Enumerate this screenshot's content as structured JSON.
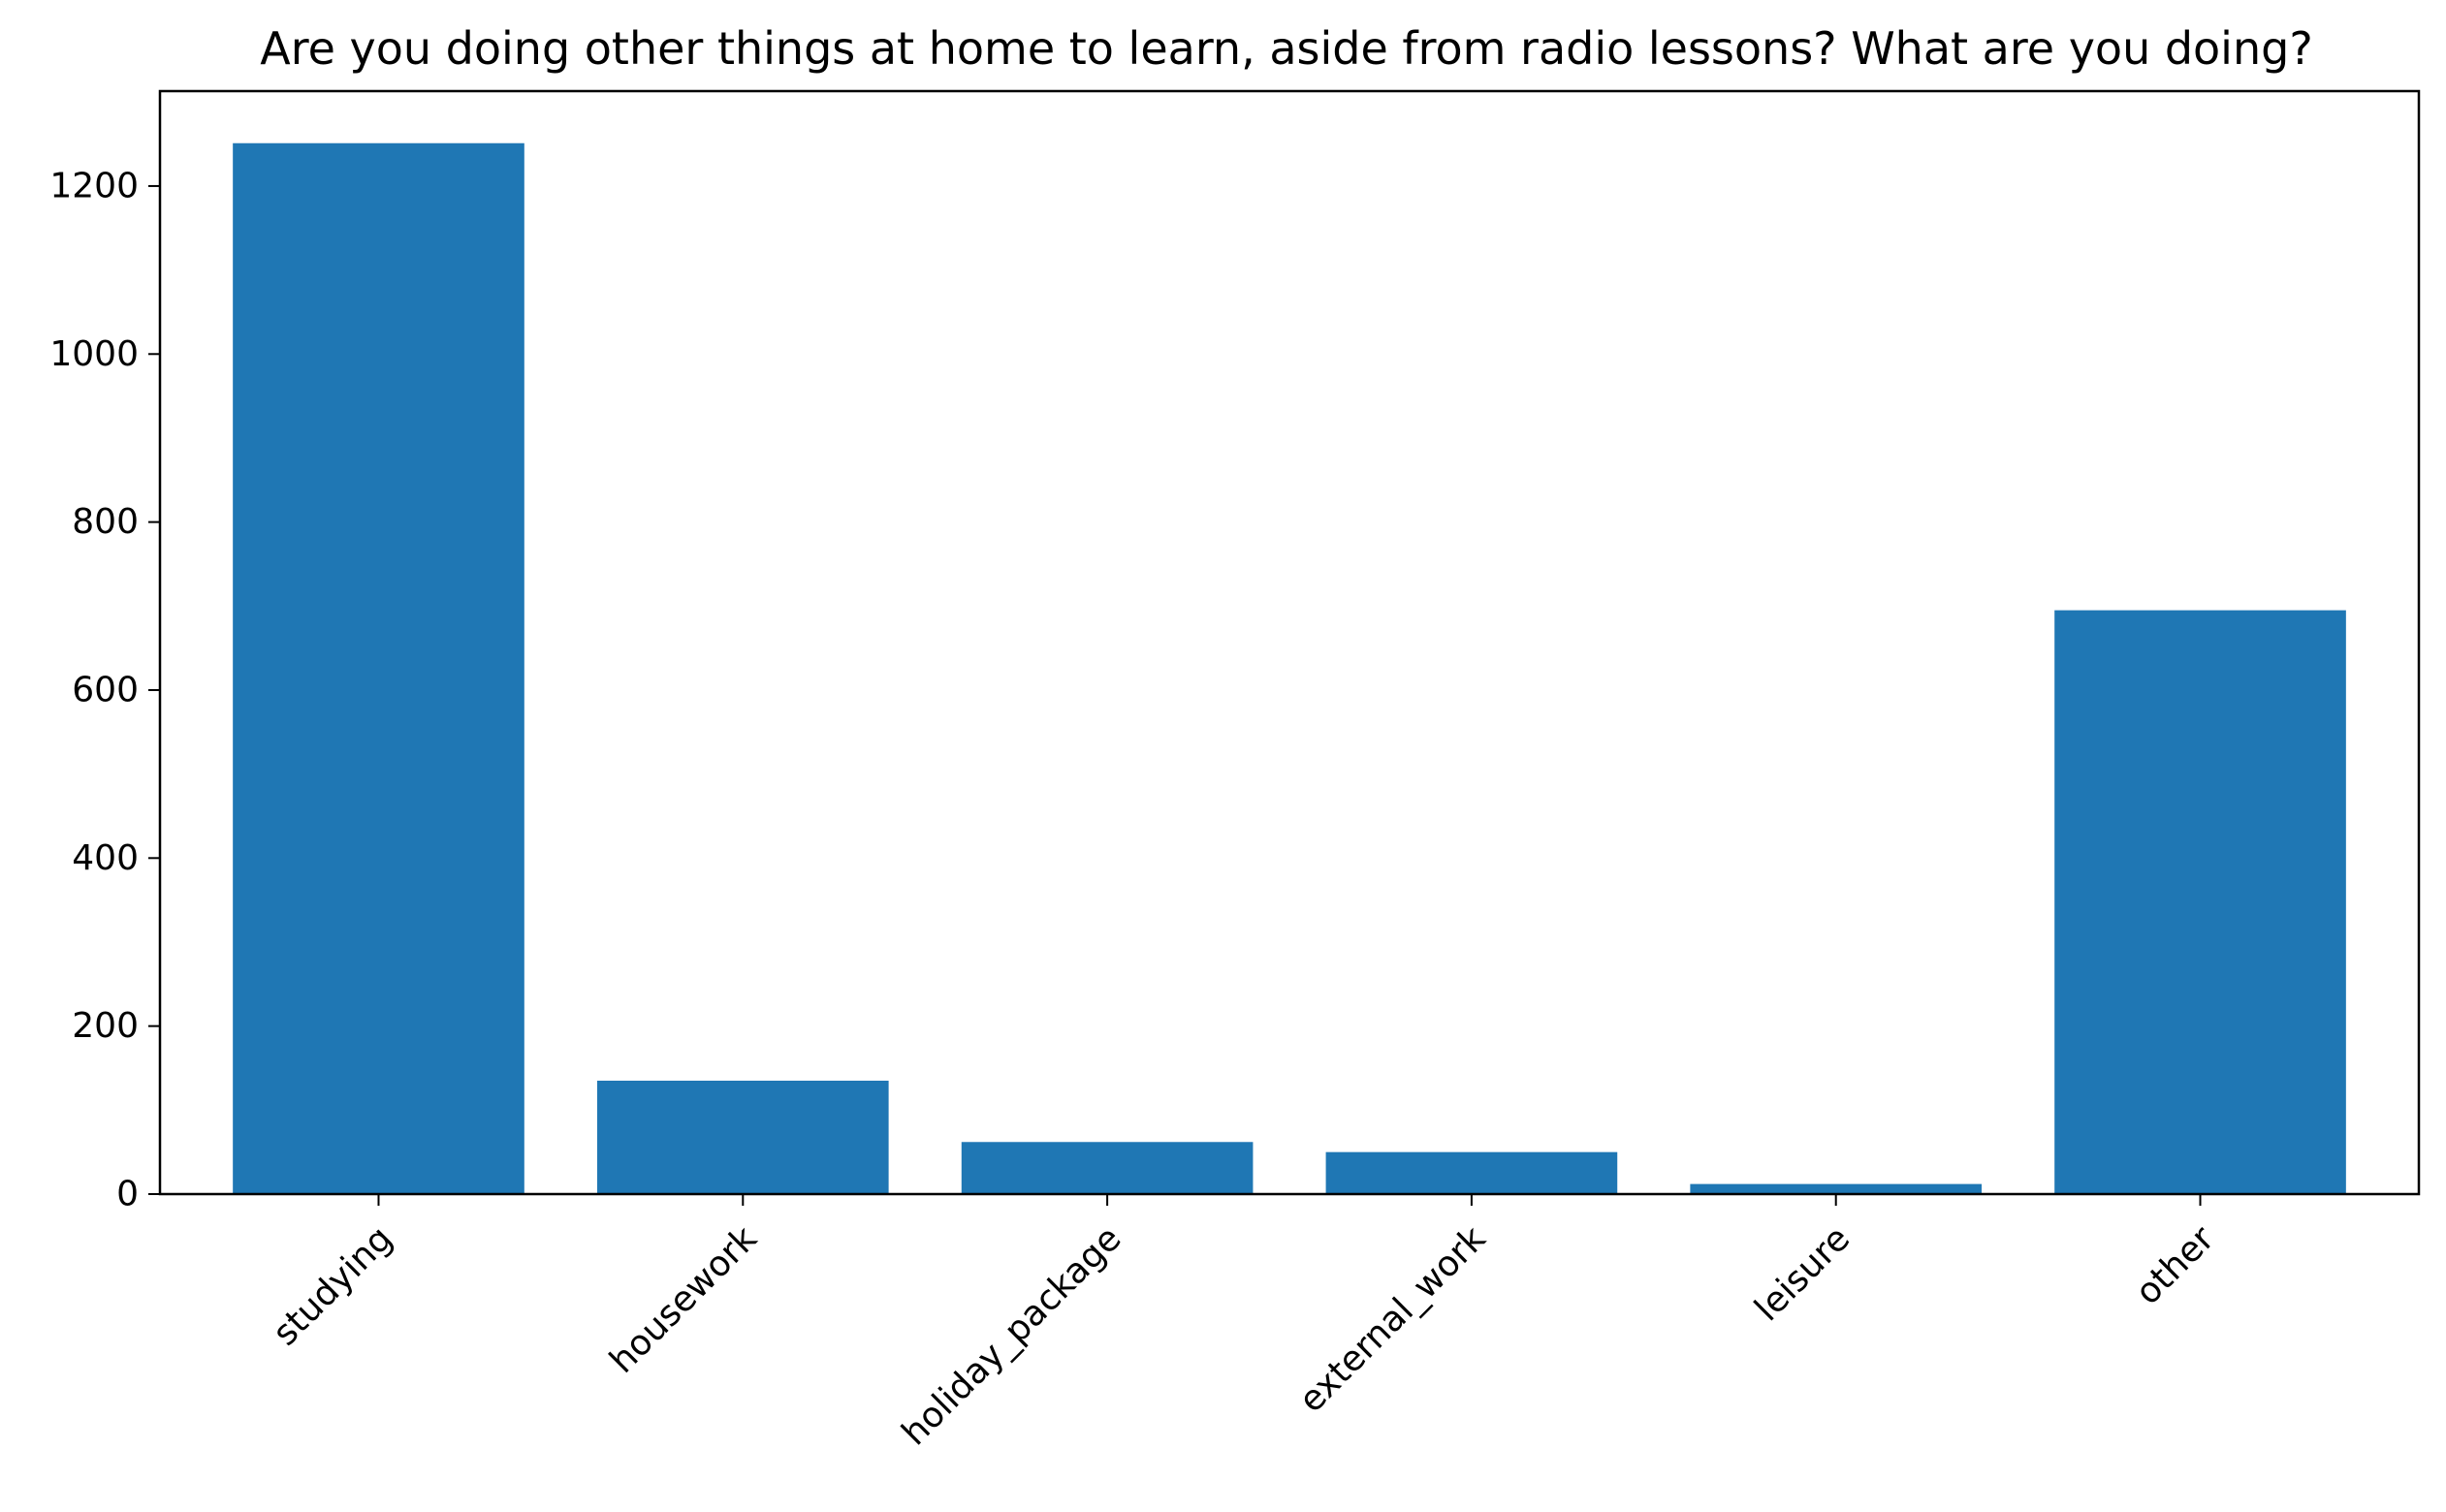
{
  "chart_data": {
    "type": "bar",
    "title": "Are you doing other things at home to learn, aside from radio lessons? What are you doing?",
    "xlabel": "",
    "ylabel": "",
    "categories": [
      "studying",
      "housework",
      "holiday_package",
      "external_work",
      "leisure",
      "other"
    ],
    "values": [
      1251,
      135,
      62,
      50,
      12,
      695
    ],
    "ylim": [
      0,
      1313
    ],
    "yticks": [
      0,
      200,
      400,
      600,
      800,
      1000,
      1200
    ],
    "bar_color": "#1f77b4",
    "grid": false,
    "legend": "none"
  }
}
